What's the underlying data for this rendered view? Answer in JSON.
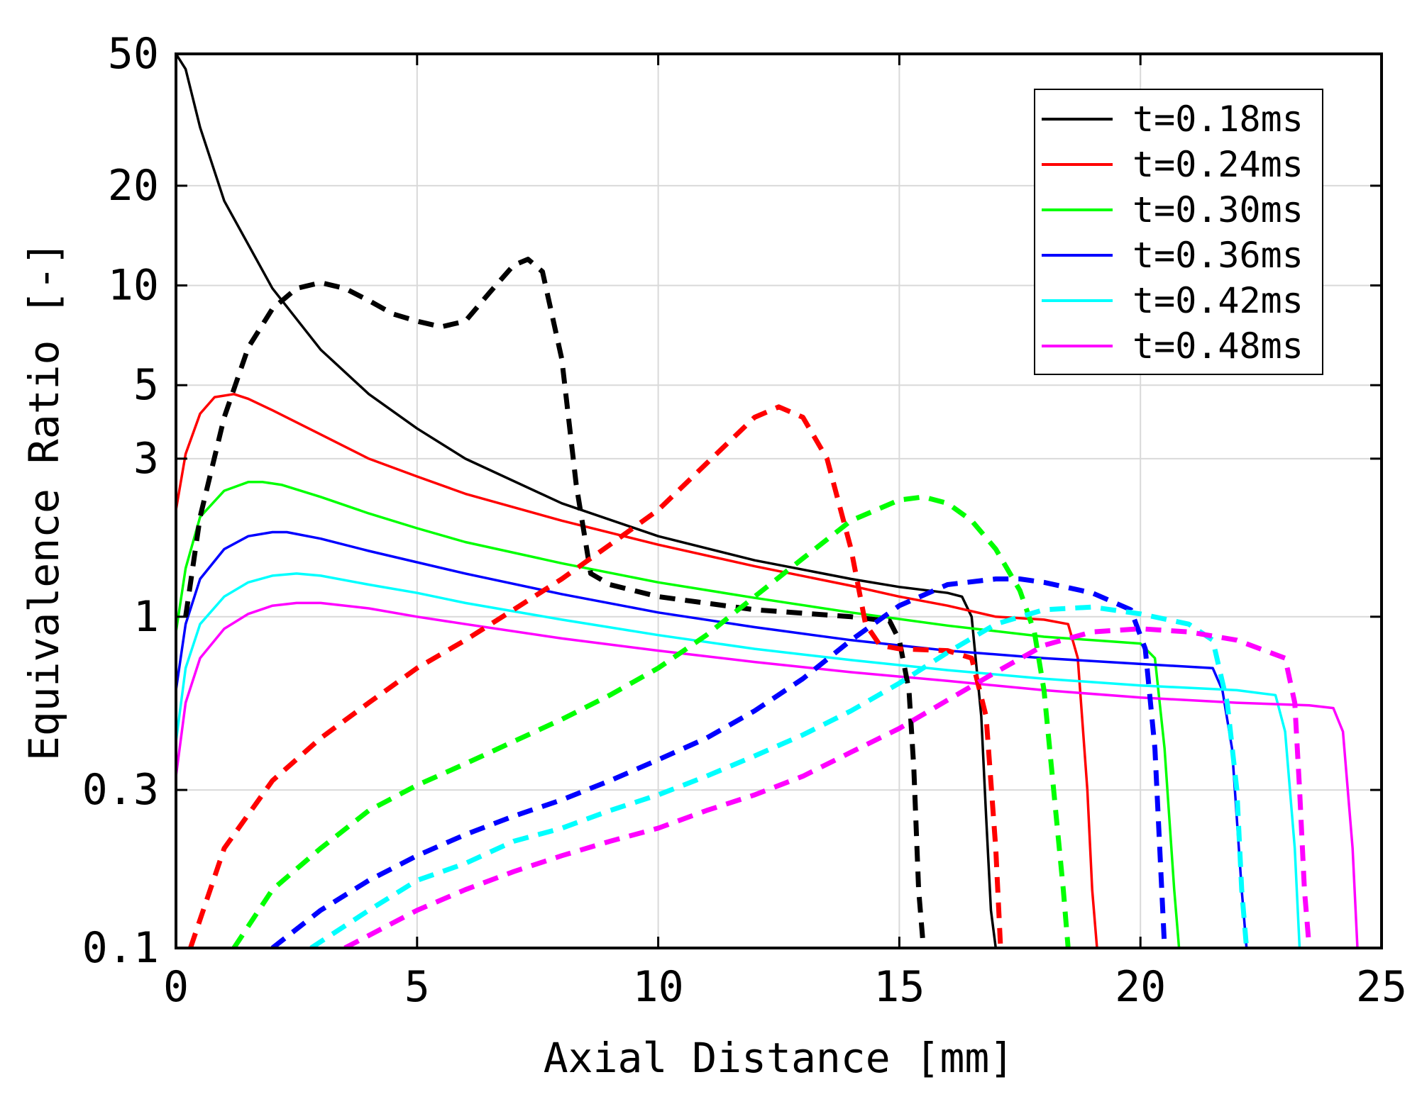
{
  "chart_data": {
    "type": "line",
    "title": "",
    "xlabel": "Axial Distance [mm]",
    "ylabel": "Equivalence Ratio [-]",
    "xlim": [
      0,
      25
    ],
    "ylim": [
      0.1,
      50
    ],
    "yscale": "log",
    "grid": true,
    "legend_position": "top-right",
    "xticks": [
      0,
      5,
      10,
      15,
      20,
      25
    ],
    "xtick_labels": [
      "0",
      "5",
      "10",
      "15",
      "20",
      "25"
    ],
    "yticks": [
      0.1,
      0.3,
      1,
      3,
      5,
      10,
      20,
      50
    ],
    "ytick_labels": [
      "0.1",
      "0.3",
      "1",
      "3",
      "5",
      "10",
      "20",
      "50"
    ],
    "series": [
      {
        "name": "t=0.18ms",
        "color": "#000000",
        "style": "solid",
        "x": [
          0,
          0.2,
          0.5,
          1,
          2,
          3,
          4,
          5,
          6,
          8,
          10,
          12,
          14,
          15,
          16,
          16.3,
          16.5,
          16.7,
          16.8,
          16.9,
          17.0
        ],
        "y": [
          50,
          45,
          30,
          18,
          9.8,
          6.4,
          4.7,
          3.7,
          3.0,
          2.2,
          1.75,
          1.48,
          1.3,
          1.23,
          1.18,
          1.15,
          1.0,
          0.5,
          0.25,
          0.13,
          0.1
        ]
      },
      {
        "name": "t=0.24ms",
        "color": "#ff0000",
        "style": "solid",
        "x": [
          0,
          0.2,
          0.5,
          0.8,
          1.2,
          1.5,
          2,
          3,
          4,
          5,
          6,
          8,
          10,
          12,
          14,
          15,
          16,
          17,
          18,
          18.5,
          18.7,
          18.9,
          19.0,
          19.1
        ],
        "y": [
          2.1,
          3.1,
          4.1,
          4.6,
          4.7,
          4.55,
          4.2,
          3.55,
          3.0,
          2.65,
          2.35,
          1.95,
          1.65,
          1.42,
          1.24,
          1.15,
          1.08,
          1.0,
          0.98,
          0.95,
          0.75,
          0.3,
          0.15,
          0.1
        ]
      },
      {
        "name": "t=0.30ms",
        "color": "#00ff00",
        "style": "solid",
        "x": [
          0,
          0.2,
          0.5,
          1,
          1.5,
          1.8,
          2.2,
          3,
          4,
          5,
          6,
          8,
          10,
          12,
          14,
          16,
          18,
          19,
          20,
          20.3,
          20.5,
          20.7,
          20.8
        ],
        "y": [
          0.9,
          1.4,
          2.0,
          2.4,
          2.55,
          2.55,
          2.5,
          2.3,
          2.05,
          1.85,
          1.68,
          1.45,
          1.27,
          1.14,
          1.03,
          0.94,
          0.87,
          0.85,
          0.83,
          0.75,
          0.4,
          0.15,
          0.1
        ]
      },
      {
        "name": "t=0.36ms",
        "color": "#0000ff",
        "style": "solid",
        "x": [
          0,
          0.2,
          0.5,
          1,
          1.5,
          2,
          2.3,
          3,
          4,
          5,
          6,
          8,
          10,
          12,
          14,
          16,
          18,
          20,
          21.5,
          21.7,
          21.9,
          22.1,
          22.2
        ],
        "y": [
          0.6,
          0.95,
          1.3,
          1.6,
          1.75,
          1.8,
          1.8,
          1.72,
          1.58,
          1.46,
          1.35,
          1.17,
          1.03,
          0.93,
          0.85,
          0.79,
          0.75,
          0.72,
          0.7,
          0.6,
          0.4,
          0.15,
          0.1
        ]
      },
      {
        "name": "t=0.42ms",
        "color": "#00ffff",
        "style": "solid",
        "x": [
          0,
          0.2,
          0.5,
          1,
          1.5,
          2,
          2.5,
          3,
          4,
          5,
          6,
          8,
          10,
          12,
          14,
          16,
          18,
          20,
          22,
          22.8,
          23.0,
          23.2,
          23.3
        ],
        "y": [
          0.42,
          0.7,
          0.95,
          1.15,
          1.27,
          1.33,
          1.35,
          1.33,
          1.25,
          1.18,
          1.1,
          0.98,
          0.88,
          0.8,
          0.74,
          0.69,
          0.65,
          0.62,
          0.6,
          0.58,
          0.45,
          0.2,
          0.1
        ]
      },
      {
        "name": "t=0.48ms",
        "color": "#ff00ff",
        "style": "solid",
        "x": [
          0,
          0.2,
          0.5,
          1,
          1.5,
          2,
          2.5,
          3,
          4,
          5,
          6,
          8,
          10,
          12,
          14,
          16,
          18,
          20,
          22,
          23.5,
          24,
          24.2,
          24.4,
          24.5
        ],
        "y": [
          0.33,
          0.55,
          0.75,
          0.92,
          1.02,
          1.08,
          1.1,
          1.1,
          1.06,
          1.0,
          0.95,
          0.86,
          0.79,
          0.73,
          0.68,
          0.64,
          0.6,
          0.57,
          0.55,
          0.54,
          0.53,
          0.45,
          0.2,
          0.1
        ]
      },
      {
        "name": "t=0.18ms (dashed)",
        "color": "#000000",
        "style": "dashed",
        "x": [
          0.2,
          0.5,
          1,
          1.5,
          2,
          2.5,
          3,
          3.5,
          4,
          4.5,
          5,
          5.5,
          6,
          6.5,
          7,
          7.3,
          7.6,
          8,
          8.3,
          8.6,
          9,
          10,
          12,
          14,
          14.8,
          15.0,
          15.2,
          15.3,
          15.4,
          15.5
        ],
        "y": [
          1.0,
          2.0,
          4.0,
          6.5,
          8.5,
          9.8,
          10.2,
          9.8,
          9.0,
          8.2,
          7.8,
          7.5,
          7.8,
          9.5,
          11.5,
          12.0,
          11.0,
          6.0,
          2.5,
          1.35,
          1.25,
          1.15,
          1.05,
          1.0,
          0.97,
          0.85,
          0.6,
          0.35,
          0.15,
          0.1
        ]
      },
      {
        "name": "t=0.24ms (dashed)",
        "color": "#ff0000",
        "style": "dashed",
        "x": [
          0.3,
          1,
          2,
          3,
          4,
          5,
          6,
          7,
          8,
          9,
          10,
          11,
          12,
          12.5,
          13,
          13.5,
          14,
          14.3,
          14.6,
          15,
          16,
          16.5,
          16.8,
          17.0,
          17.1
        ],
        "y": [
          0.1,
          0.2,
          0.32,
          0.43,
          0.55,
          0.7,
          0.85,
          1.05,
          1.3,
          1.65,
          2.1,
          2.9,
          4.0,
          4.3,
          4.0,
          3.0,
          1.6,
          0.95,
          0.82,
          0.8,
          0.79,
          0.75,
          0.5,
          0.2,
          0.1
        ]
      },
      {
        "name": "t=0.30ms (dashed)",
        "color": "#00ff00",
        "style": "dashed",
        "x": [
          1.2,
          2,
          3,
          4,
          5,
          6,
          7,
          8,
          9,
          10,
          11,
          12,
          13,
          14,
          15,
          15.5,
          16,
          16.5,
          17,
          17.5,
          17.8,
          18.0,
          18.2,
          18.4,
          18.5
        ],
        "y": [
          0.1,
          0.15,
          0.2,
          0.26,
          0.31,
          0.36,
          0.42,
          0.49,
          0.58,
          0.7,
          0.88,
          1.15,
          1.5,
          1.95,
          2.25,
          2.3,
          2.2,
          1.95,
          1.6,
          1.2,
          0.9,
          0.6,
          0.3,
          0.15,
          0.1
        ]
      },
      {
        "name": "t=0.36ms (dashed)",
        "color": "#0000ff",
        "style": "dashed",
        "x": [
          2,
          3,
          4,
          5,
          6,
          7,
          8,
          9,
          10,
          11,
          12,
          13,
          14,
          15,
          16,
          17,
          17.5,
          18,
          19,
          19.8,
          20.1,
          20.3,
          20.4,
          20.5
        ],
        "y": [
          0.1,
          0.13,
          0.16,
          0.19,
          0.22,
          0.25,
          0.28,
          0.32,
          0.37,
          0.43,
          0.52,
          0.65,
          0.85,
          1.08,
          1.25,
          1.3,
          1.3,
          1.27,
          1.18,
          1.05,
          0.8,
          0.4,
          0.2,
          0.1
        ]
      },
      {
        "name": "t=0.42ms (dashed)",
        "color": "#00ffff",
        "style": "dashed",
        "x": [
          2.8,
          4,
          5,
          6,
          7,
          8,
          9,
          10,
          11,
          12,
          13,
          14,
          15,
          16,
          17,
          18,
          19,
          20,
          21,
          21.5,
          21.8,
          22.0,
          22.1,
          22.2
        ],
        "y": [
          0.1,
          0.13,
          0.16,
          0.18,
          0.21,
          0.23,
          0.26,
          0.29,
          0.33,
          0.38,
          0.44,
          0.52,
          0.63,
          0.78,
          0.95,
          1.05,
          1.07,
          1.02,
          0.95,
          0.85,
          0.55,
          0.3,
          0.15,
          0.1
        ]
      },
      {
        "name": "t=0.48ms (dashed)",
        "color": "#ff00ff",
        "style": "dashed",
        "x": [
          3.5,
          5,
          6,
          7,
          8,
          9,
          10,
          11,
          12,
          13,
          14,
          15,
          16,
          17,
          18,
          19,
          20,
          21,
          22,
          23,
          23.2,
          23.3,
          23.4,
          23.5
        ],
        "y": [
          0.1,
          0.13,
          0.15,
          0.17,
          0.19,
          0.21,
          0.23,
          0.26,
          0.29,
          0.33,
          0.39,
          0.46,
          0.56,
          0.68,
          0.82,
          0.9,
          0.92,
          0.9,
          0.85,
          0.75,
          0.55,
          0.3,
          0.15,
          0.1
        ]
      }
    ]
  }
}
